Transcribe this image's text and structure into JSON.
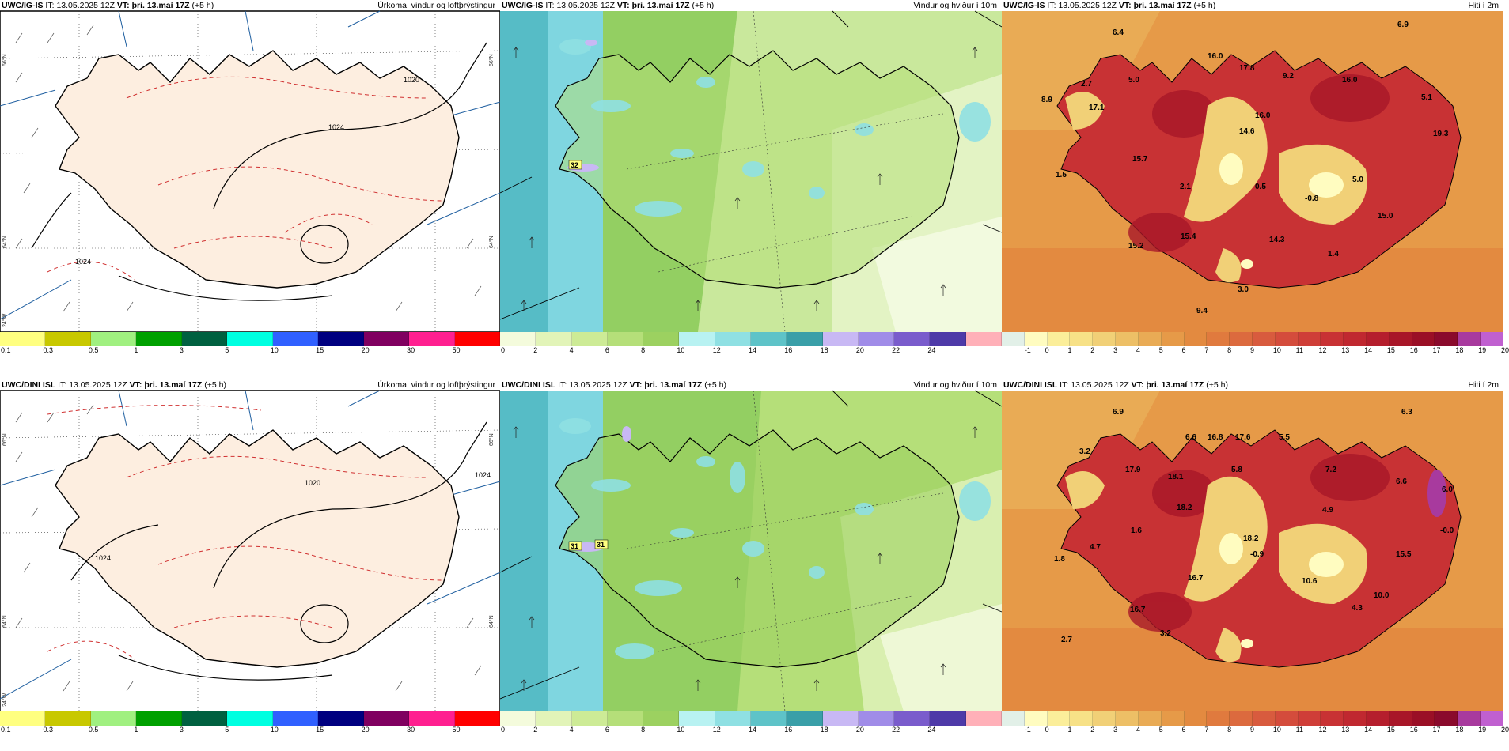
{
  "rows": [
    {
      "model": "UWC/IG-IS",
      "it_label": "IT:",
      "it_value": "13.05.2025 12Z",
      "vt_label": "VT:",
      "vt_value": "þri. 13.maí 17Z",
      "lead": "(+5 h)"
    },
    {
      "model": "UWC/DINI ISL",
      "it_label": "IT:",
      "it_value": "13.05.2025 12Z",
      "vt_label": "VT:",
      "vt_value": "þri. 13.maí 17Z",
      "lead": "(+5 h)"
    }
  ],
  "panel_titles": {
    "precip": "Úrkoma, vindur og loftþrýstingur",
    "wind": "Vindur og hviður í 10m",
    "temp": "Hiti í 2m"
  },
  "coords": {
    "lat66": "66°N",
    "lat64": "64°N",
    "lon24": "24°W"
  },
  "precip_legend": {
    "ticks": [
      "0.1",
      "0.3",
      "0.5",
      "1",
      "3",
      "5",
      "10",
      "15",
      "20",
      "30",
      "50"
    ],
    "colors": [
      "#ffff80",
      "#c8c800",
      "#a0f080",
      "#00a000",
      "#006040",
      "#00ffe0",
      "#3060ff",
      "#000080",
      "#800060",
      "#ff2090",
      "#ff0000"
    ]
  },
  "wind_legend": {
    "ticks": [
      "0",
      "2",
      "4",
      "6",
      "8",
      "10",
      "12",
      "14",
      "16",
      "18",
      "20",
      "22",
      "24"
    ],
    "colors": [
      "#f4fbdc",
      "#e2f4b8",
      "#cdeb96",
      "#b5df79",
      "#9cd160",
      "#b8f2f2",
      "#8fe0e3",
      "#5ec3c8",
      "#3a9fa8",
      "#c8b8f4",
      "#a08ce8",
      "#7a5ccc",
      "#4e3aa8",
      "#ffb0b8"
    ]
  },
  "temp_legend": {
    "ticks": [
      "-1",
      "0",
      "1",
      "2",
      "3",
      "4",
      "5",
      "6",
      "7",
      "8",
      "9",
      "10",
      "11",
      "12",
      "13",
      "14",
      "15",
      "16",
      "17",
      "18",
      "19",
      "20"
    ],
    "colors": [
      "#e2f0e8",
      "#fffcc0",
      "#fbee9a",
      "#f7e187",
      "#f1d077",
      "#edbf66",
      "#e9ab55",
      "#e69a48",
      "#e38a40",
      "#e07a3e",
      "#dc6a3e",
      "#d85b3e",
      "#d44c3c",
      "#cf3e38",
      "#c83234",
      "#c02830",
      "#b51e2d",
      "#a81628",
      "#9a0f26",
      "#8a0a2c",
      "#a83a9e",
      "#c060d0"
    ]
  },
  "pressure_labels": [
    {
      "row": 0,
      "text": "1024"
    },
    {
      "row": 0,
      "text": "1024"
    },
    {
      "row": 0,
      "text": "1020"
    },
    {
      "row": 1,
      "text": "1020"
    },
    {
      "row": 1,
      "text": "1024"
    },
    {
      "row": 1,
      "text": "1024"
    }
  ],
  "wind_peaks": [
    {
      "row": 0,
      "text": "32"
    },
    {
      "row": 1,
      "text": "31"
    },
    {
      "row": 1,
      "text": "31"
    }
  ],
  "temp_labels": [
    {
      "row": 0,
      "text": "6.4"
    },
    {
      "row": 0,
      "text": "6.9"
    },
    {
      "row": 0,
      "text": "2.7"
    },
    {
      "row": 0,
      "text": "5.0"
    },
    {
      "row": 0,
      "text": "16.0"
    },
    {
      "row": 0,
      "text": "17.8"
    },
    {
      "row": 0,
      "text": "9.2"
    },
    {
      "row": 0,
      "text": "16.0"
    },
    {
      "row": 0,
      "text": "8.9"
    },
    {
      "row": 0,
      "text": "17.1"
    },
    {
      "row": 0,
      "text": "16.0"
    },
    {
      "row": 0,
      "text": "5.1"
    },
    {
      "row": 0,
      "text": "14.6"
    },
    {
      "row": 0,
      "text": "19.3"
    },
    {
      "row": 0,
      "text": "15.7"
    },
    {
      "row": 0,
      "text": "1.5"
    },
    {
      "row": 0,
      "text": "2.1"
    },
    {
      "row": 0,
      "text": "0.5"
    },
    {
      "row": 0,
      "text": "-0.8"
    },
    {
      "row": 0,
      "text": "5.0"
    },
    {
      "row": 0,
      "text": "15.0"
    },
    {
      "row": 0,
      "text": "15.4"
    },
    {
      "row": 0,
      "text": "14.3"
    },
    {
      "row": 0,
      "text": "15.2"
    },
    {
      "row": 0,
      "text": "1.4"
    },
    {
      "row": 0,
      "text": "3.0"
    },
    {
      "row": 0,
      "text": "9.4"
    },
    {
      "row": 1,
      "text": "6.9"
    },
    {
      "row": 1,
      "text": "6.3"
    },
    {
      "row": 1,
      "text": "3.2"
    },
    {
      "row": 1,
      "text": "6.6"
    },
    {
      "row": 1,
      "text": "16.8"
    },
    {
      "row": 1,
      "text": "17.6"
    },
    {
      "row": 1,
      "text": "5.5"
    },
    {
      "row": 1,
      "text": "17.9"
    },
    {
      "row": 1,
      "text": "18.1"
    },
    {
      "row": 1,
      "text": "5.8"
    },
    {
      "row": 1,
      "text": "18.2"
    },
    {
      "row": 1,
      "text": "7.2"
    },
    {
      "row": 1,
      "text": "6.6"
    },
    {
      "row": 1,
      "text": "6.0"
    },
    {
      "row": 1,
      "text": "18.2"
    },
    {
      "row": 1,
      "text": "4.9"
    },
    {
      "row": 1,
      "text": "1.6"
    },
    {
      "row": 1,
      "text": "-0.0"
    },
    {
      "row": 1,
      "text": "4.7"
    },
    {
      "row": 1,
      "text": "1.8"
    },
    {
      "row": 1,
      "text": "-0.9"
    },
    {
      "row": 1,
      "text": "15.5"
    },
    {
      "row": 1,
      "text": "16.7"
    },
    {
      "row": 1,
      "text": "10.6"
    },
    {
      "row": 1,
      "text": "16.7"
    },
    {
      "row": 1,
      "text": "4.3"
    },
    {
      "row": 1,
      "text": "3.2"
    },
    {
      "row": 1,
      "text": "2.7"
    },
    {
      "row": 1,
      "text": "10.0"
    }
  ]
}
